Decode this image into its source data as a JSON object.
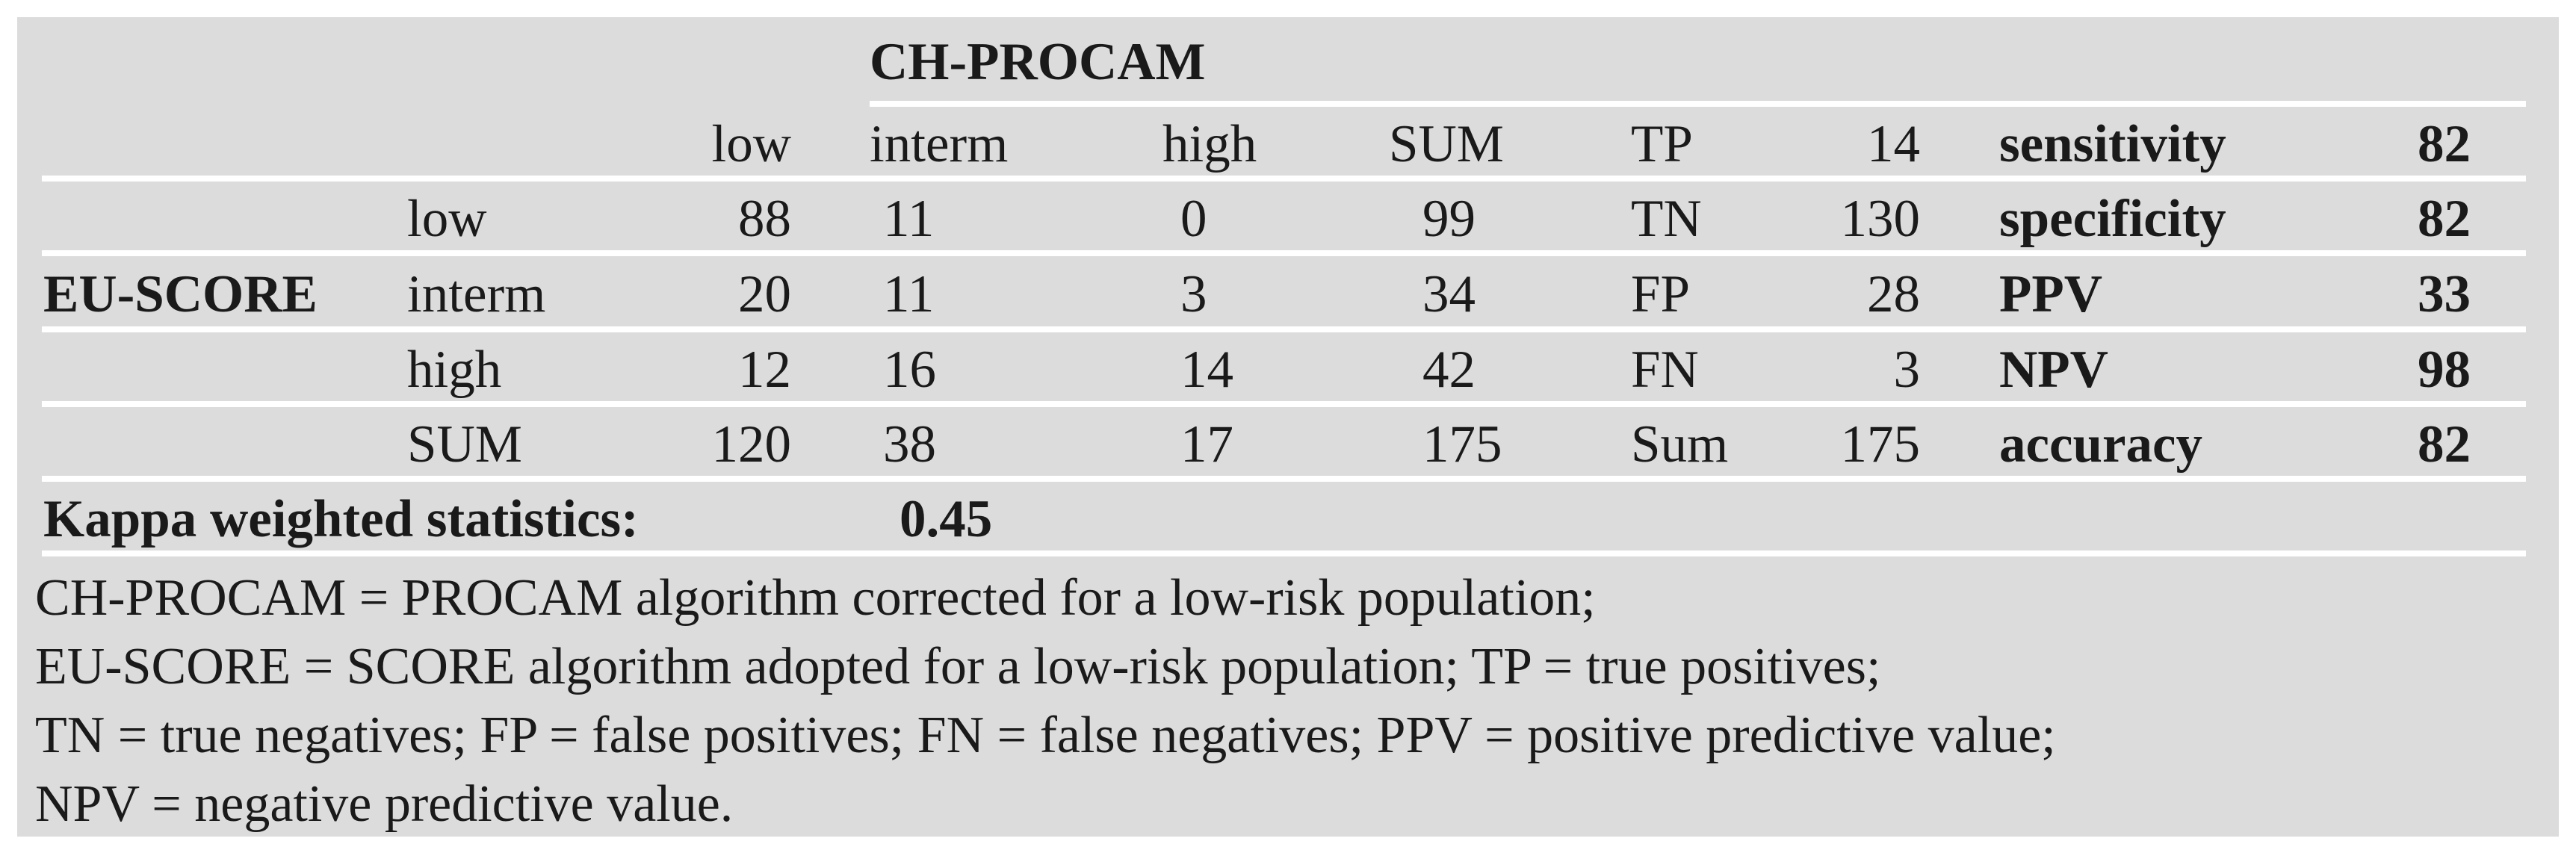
{
  "colors": {
    "page_bg": "#ffffff",
    "table_bg": "#dcdcdc",
    "rule": "#ffffff",
    "text": "#1a1a1a"
  },
  "table": {
    "top_header": "CH-PROCAM",
    "side_header": "EU-SCORE",
    "col_headers": {
      "low": "low",
      "interm": "interm",
      "high": "high",
      "sum": "SUM"
    },
    "matrix_rows": [
      {
        "label": "low",
        "low": "88",
        "interm": "11",
        "high": "0",
        "sum": "99"
      },
      {
        "label": "interm",
        "low": "20",
        "interm": "11",
        "high": "3",
        "sum": "34"
      },
      {
        "label": "high",
        "low": "12",
        "interm": "16",
        "high": "14",
        "sum": "42"
      },
      {
        "label": "SUM",
        "low": "120",
        "interm": "38",
        "high": "17",
        "sum": "175"
      }
    ],
    "counts": [
      {
        "label": "TP",
        "value": "14"
      },
      {
        "label": "TN",
        "value": "130"
      },
      {
        "label": "FP",
        "value": "28"
      },
      {
        "label": "FN",
        "value": "3"
      },
      {
        "label": "Sum",
        "value": "175"
      }
    ],
    "metrics": [
      {
        "label": "sensitivity",
        "value": "82"
      },
      {
        "label": "specificity",
        "value": "82"
      },
      {
        "label": "PPV",
        "value": "33"
      },
      {
        "label": "NPV",
        "value": "98"
      },
      {
        "label": "accuracy",
        "value": "82"
      }
    ],
    "kappa": {
      "label": "Kappa weighted statistics:",
      "value": "0.45"
    },
    "footnotes": [
      "CH-PROCAM = PROCAM algorithm corrected for a low-risk population;",
      "EU-SCORE = SCORE algorithm adopted for a low-risk population; TP = true positives;",
      "TN = true negatives; FP = false positives; FN = false negatives; PPV = positive predictive value;",
      "NPV = negative predictive value."
    ]
  }
}
